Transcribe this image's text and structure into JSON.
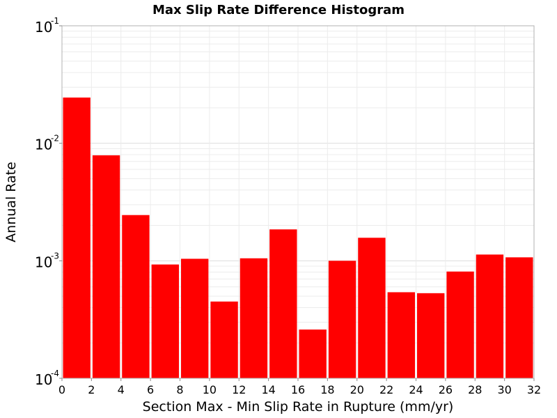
{
  "chart_data": {
    "type": "bar",
    "title": "Max Slip Rate Difference Histogram",
    "xlabel": "Section Max - Min Slip Rate in Rupture (mm/yr)",
    "ylabel": "Annual Rate",
    "xlim": [
      0,
      32
    ],
    "ylim": [
      0.0001,
      0.1
    ],
    "yscale": "log",
    "grid": true,
    "bar_color": "#ff0000",
    "x_ticks": [
      "0",
      "2",
      "4",
      "6",
      "8",
      "10",
      "12",
      "14",
      "16",
      "18",
      "20",
      "22",
      "24",
      "26",
      "28",
      "30",
      "32"
    ],
    "x_tick_values": [
      0,
      2,
      4,
      6,
      8,
      10,
      12,
      14,
      16,
      18,
      20,
      22,
      24,
      26,
      28,
      30,
      32
    ],
    "y_ticks": [
      {
        "base": "10",
        "exp": "-1",
        "value": 0.1
      },
      {
        "base": "10",
        "exp": "-2",
        "value": 0.01
      },
      {
        "base": "10",
        "exp": "-3",
        "value": 0.001
      },
      {
        "base": "10",
        "exp": "-4",
        "value": 0.0001
      }
    ],
    "bin_width": 2,
    "x": [
      1,
      3,
      5,
      7,
      9,
      11,
      13,
      15,
      17,
      19,
      21,
      23,
      25,
      27,
      29,
      31
    ],
    "values": [
      0.0245,
      0.0079,
      0.00245,
      0.00093,
      0.00104,
      0.00045,
      0.00105,
      0.00185,
      0.00026,
      0.001,
      0.00157,
      0.00054,
      0.00053,
      0.00081,
      0.00113,
      0.00107
    ]
  }
}
